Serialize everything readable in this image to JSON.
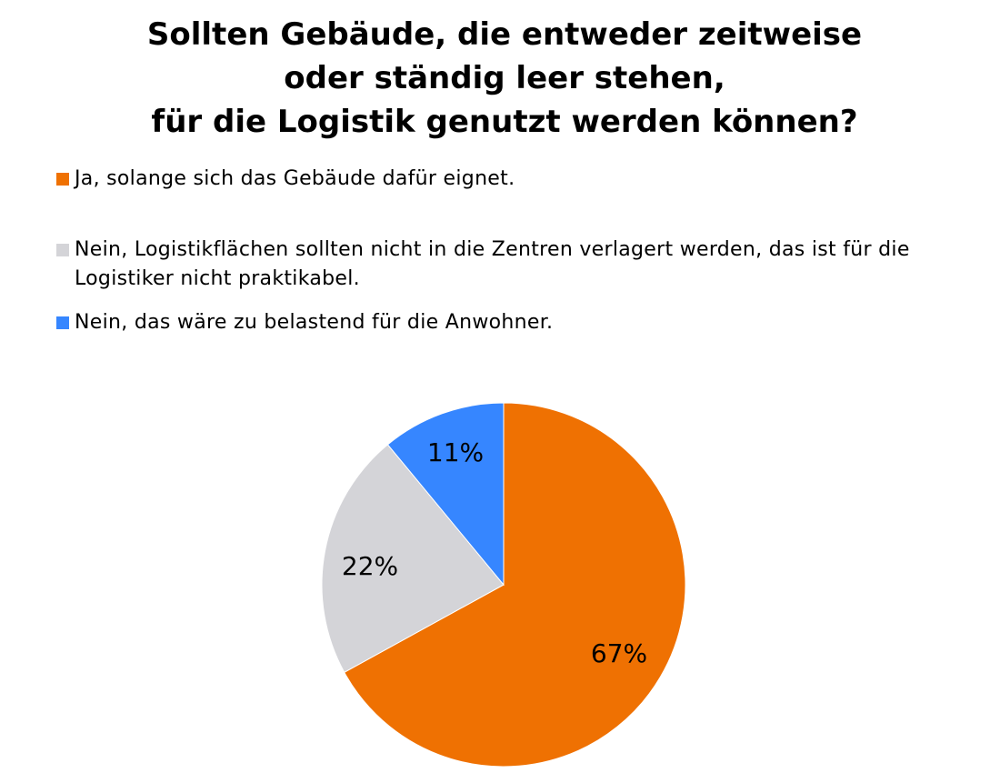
{
  "chart_data": {
    "type": "pie",
    "title_lines": [
      "Sollten Gebäude, die entweder zeitweise",
      "oder ständig leer stehen,",
      "für die Logistik genutzt werden können?"
    ],
    "legend_position": "top",
    "start_angle_deg": 0,
    "direction": "clockwise",
    "slices": [
      {
        "label": "Ja, solange sich das Gebäude dafür eignet.",
        "value": 67,
        "value_label": "67%",
        "color": "#ef7102"
      },
      {
        "label": "Nein, Logistikflächen sollten nicht in die Zentren verlagert werden, das ist für die Logistiker nicht praktikabel.",
        "value": 22,
        "value_label": "22%",
        "color": "#d4d4d8"
      },
      {
        "label": "Nein, das wäre zu belastend für die Anwohner.",
        "value": 11,
        "value_label": "11%",
        "color": "#3686ff"
      }
    ]
  }
}
